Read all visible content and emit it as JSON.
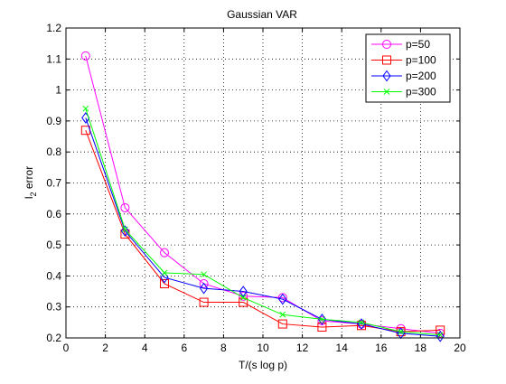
{
  "chart_data": {
    "type": "line",
    "title": "Gaussian VAR",
    "xlabel": "T/(s log p)",
    "ylabel_main": "l",
    "ylabel_sub": "2",
    "ylabel_rest": " error",
    "xlim": [
      0,
      20
    ],
    "ylim": [
      0.2,
      1.2
    ],
    "xticks": [
      0,
      2,
      4,
      6,
      8,
      10,
      12,
      14,
      16,
      18,
      20
    ],
    "yticks": [
      0.2,
      0.3,
      0.4,
      0.5,
      0.6,
      0.7,
      0.8,
      0.9,
      1.0,
      1.1,
      1.2
    ],
    "xtick_labels": [
      "0",
      "2",
      "4",
      "6",
      "8",
      "10",
      "12",
      "14",
      "16",
      "18",
      "20"
    ],
    "ytick_labels": [
      "0.2",
      "0.3",
      "0.4",
      "0.5",
      "0.6",
      "0.7",
      "0.8",
      "0.9",
      "1",
      "1.1",
      "1.2"
    ],
    "grid": true,
    "legend_position": "top-right",
    "x": [
      1,
      3,
      5,
      7,
      9,
      11,
      13,
      15,
      17,
      19
    ],
    "series": [
      {
        "name": "p=50",
        "color": "#ff00ff",
        "marker": "circle",
        "values": [
          1.11,
          0.62,
          0.475,
          0.375,
          0.335,
          0.33,
          0.255,
          0.245,
          0.23,
          0.215
        ]
      },
      {
        "name": "p=100",
        "color": "#ff0000",
        "marker": "square",
        "values": [
          0.87,
          0.535,
          0.375,
          0.315,
          0.315,
          0.245,
          0.235,
          0.24,
          0.22,
          0.225
        ]
      },
      {
        "name": "p=200",
        "color": "#0000ff",
        "marker": "diamond",
        "values": [
          0.91,
          0.545,
          0.395,
          0.36,
          0.35,
          0.325,
          0.26,
          0.245,
          0.215,
          0.205
        ]
      },
      {
        "name": "p=300",
        "color": "#00ff00",
        "marker": "x",
        "values": [
          0.94,
          0.55,
          0.41,
          0.405,
          0.33,
          0.275,
          0.26,
          0.25,
          0.22,
          0.21
        ]
      }
    ]
  }
}
